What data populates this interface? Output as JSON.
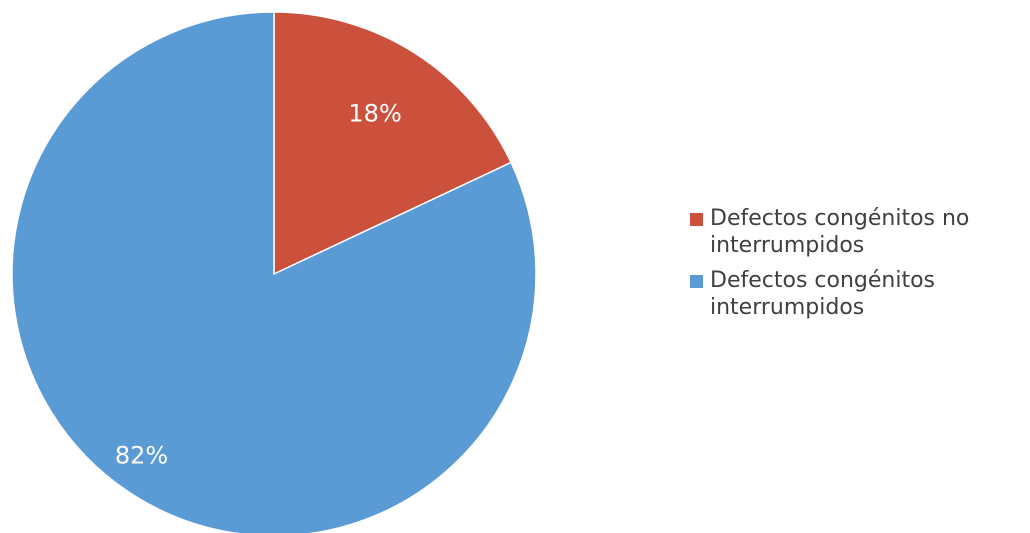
{
  "chart_data": {
    "type": "pie",
    "title": "",
    "legend_position": "right",
    "slices": [
      {
        "label": "Defectos congénitos no interrumpidos",
        "value": 18,
        "display": "18%",
        "color": "#CB513C"
      },
      {
        "label": "Defectos congénitos interrumpidos",
        "value": 82,
        "display": "82%",
        "color": "#5B9BD5"
      }
    ]
  }
}
